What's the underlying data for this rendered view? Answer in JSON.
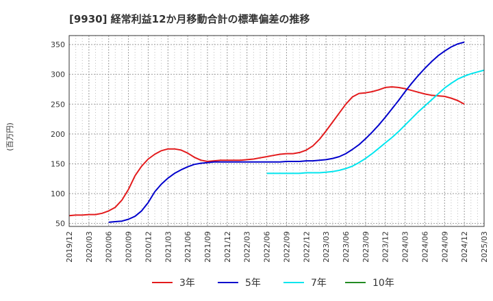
{
  "chart_data": {
    "type": "line",
    "title": "[9930]  経常利益12か月移動合計の標準偏差の推移",
    "ylabel": "(百万円)",
    "xlabel": "",
    "ylim": [
      45,
      365
    ],
    "yticks": [
      50,
      100,
      150,
      200,
      250,
      300,
      350
    ],
    "xticks": [
      "2019/12",
      "2020/03",
      "2020/06",
      "2020/09",
      "2020/12",
      "2021/03",
      "2021/06",
      "2021/09",
      "2021/12",
      "2022/03",
      "2022/06",
      "2022/09",
      "2022/12",
      "2023/03",
      "2023/06",
      "2023/09",
      "2023/12",
      "2024/03",
      "2024/06",
      "2024/09",
      "2024/12",
      "2025/03"
    ],
    "grid": true,
    "legend_position": "bottom",
    "series": [
      {
        "name": "3年",
        "color": "#e31a1c",
        "start_month": 0,
        "values": [
          63,
          64,
          64,
          65,
          65,
          67,
          71,
          77,
          89,
          107,
          130,
          146,
          158,
          166,
          172,
          175,
          175,
          173,
          168,
          161,
          156,
          154,
          155,
          156,
          156,
          156,
          156,
          157,
          158,
          160,
          162,
          164,
          166,
          167,
          167,
          169,
          173,
          180,
          191,
          205,
          220,
          235,
          250,
          262,
          268,
          269,
          271,
          274,
          278,
          279,
          278,
          276,
          273,
          270,
          267,
          265,
          264,
          263,
          260,
          256,
          250
        ]
      },
      {
        "name": "5年",
        "color": "#0000cc",
        "start_month": 6,
        "values": [
          52,
          53,
          54,
          57,
          62,
          71,
          85,
          103,
          116,
          126,
          134,
          140,
          145,
          149,
          151,
          152,
          153,
          153,
          153,
          153,
          153,
          153,
          153,
          153,
          153,
          153,
          153,
          154,
          154,
          154,
          155,
          155,
          156,
          157,
          159,
          162,
          167,
          174,
          182,
          192,
          203,
          215,
          228,
          242,
          256,
          271,
          285,
          298,
          310,
          321,
          331,
          339,
          346,
          351,
          354
        ]
      },
      {
        "name": "7年",
        "color": "#00e5ee",
        "start_month": 30,
        "values": [
          134,
          134,
          134,
          134,
          134,
          134,
          135,
          135,
          135,
          136,
          137,
          139,
          142,
          146,
          152,
          159,
          167,
          176,
          185,
          194,
          204,
          215,
          226,
          237,
          247,
          257,
          267,
          277,
          285,
          292,
          297,
          301,
          304,
          307
        ]
      },
      {
        "name": "10年",
        "color": "#228b22",
        "start_month": 0,
        "values": []
      }
    ]
  }
}
